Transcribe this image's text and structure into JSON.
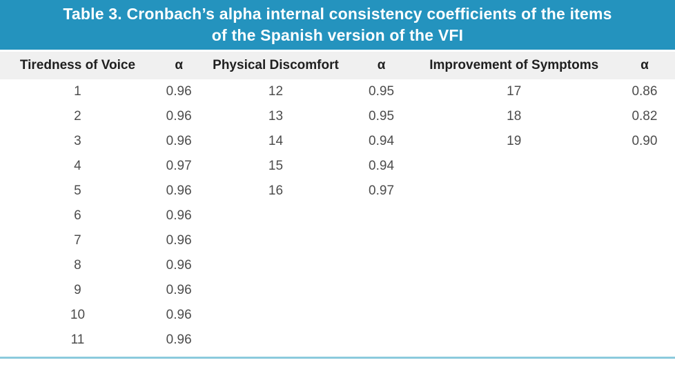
{
  "header": {
    "title_line1": "Table 3. Cronbach’s alpha internal consistency coefficients of the items",
    "title_line2": "of the Spanish version of the VFI"
  },
  "table": {
    "columns": [
      "Tiredness of Voice",
      "α",
      "Physical Discomfort",
      "α",
      "Improvement of Symptoms",
      "α"
    ],
    "rows": [
      [
        "1",
        "0.96",
        "12",
        "0.95",
        "17",
        "0.86"
      ],
      [
        "2",
        "0.96",
        "13",
        "0.95",
        "18",
        "0.82"
      ],
      [
        "3",
        "0.96",
        "14",
        "0.94",
        "19",
        "0.90"
      ],
      [
        "4",
        "0.97",
        "15",
        "0.94",
        "",
        ""
      ],
      [
        "5",
        "0.96",
        "16",
        "0.97",
        "",
        ""
      ],
      [
        "6",
        "0.96",
        "",
        "",
        "",
        ""
      ],
      [
        "7",
        "0.96",
        "",
        "",
        "",
        ""
      ],
      [
        "8",
        "0.96",
        "",
        "",
        "",
        ""
      ],
      [
        "9",
        "0.96",
        "",
        "",
        "",
        ""
      ],
      [
        "10",
        "0.96",
        "",
        "",
        "",
        ""
      ],
      [
        "11",
        "0.96",
        "",
        "",
        "",
        ""
      ]
    ]
  },
  "colors": {
    "accent_teal": "#2493be",
    "header_row_bg": "#f0f0f0",
    "bottom_rule": "#8bcadd",
    "data_text": "#4c4c4c"
  }
}
